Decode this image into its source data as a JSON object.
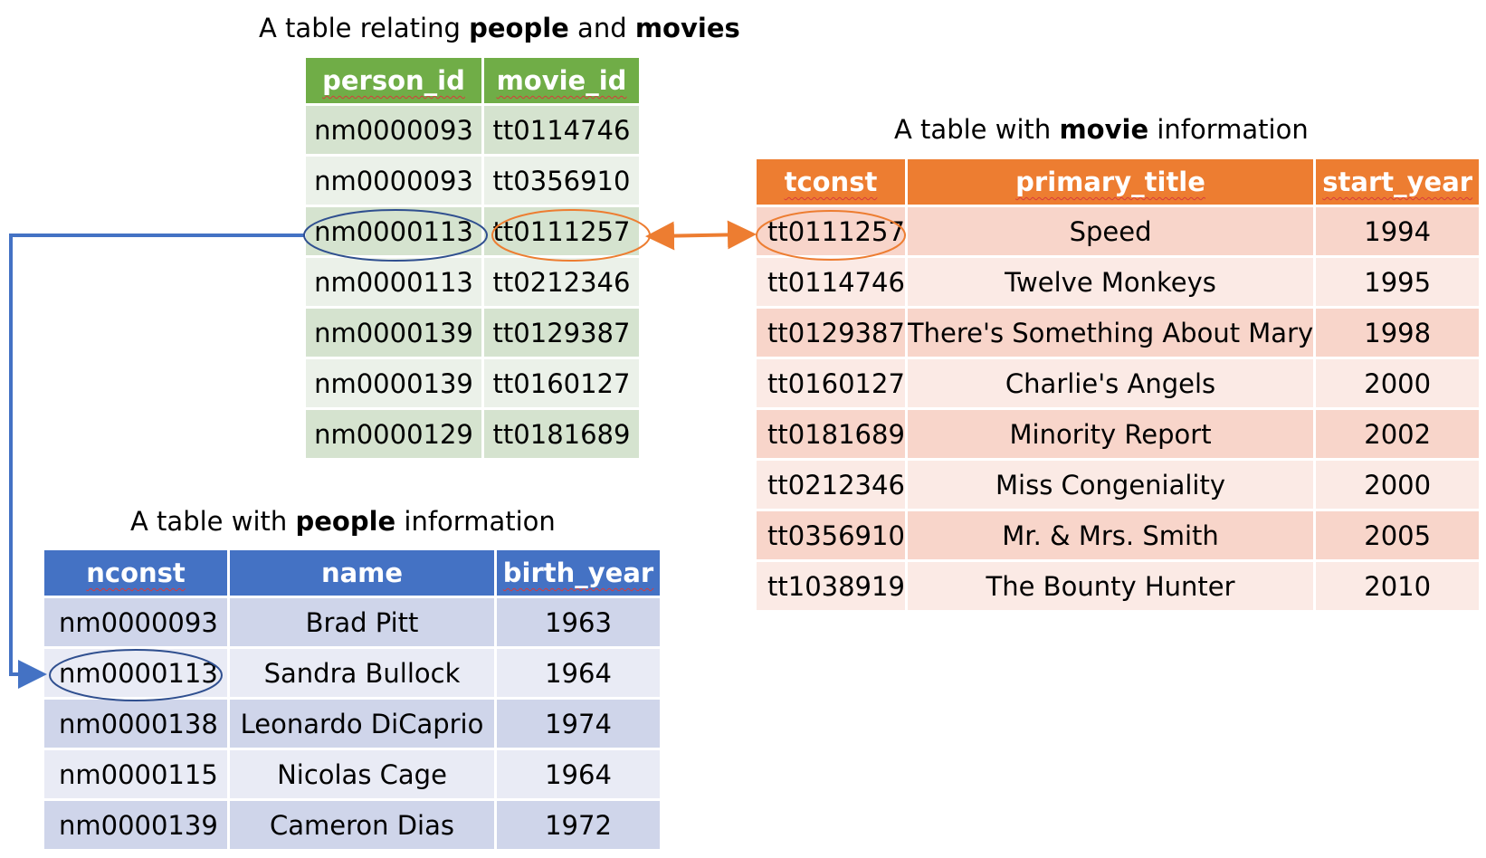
{
  "relation_table": {
    "caption_prefix": "A table relating ",
    "caption_bold1": "people",
    "caption_mid": " and ",
    "caption_bold2": "movies",
    "headers": [
      "person_id",
      "movie_id"
    ],
    "rows": [
      [
        "nm0000093",
        "tt0114746"
      ],
      [
        "nm0000093",
        "tt0356910"
      ],
      [
        "nm0000113",
        "tt0111257"
      ],
      [
        "nm0000113",
        "tt0212346"
      ],
      [
        "nm0000139",
        "tt0129387"
      ],
      [
        "nm0000139",
        "tt0160127"
      ],
      [
        "nm0000129",
        "tt0181689"
      ]
    ],
    "color": "#70ad47"
  },
  "movie_table": {
    "caption_prefix": "A table with ",
    "caption_bold": "movie",
    "caption_suffix": " information",
    "headers": [
      "tconst",
      "primary_title",
      "start_year"
    ],
    "rows": [
      [
        "tt0111257",
        "Speed",
        "1994"
      ],
      [
        "tt0114746",
        "Twelve Monkeys",
        "1995"
      ],
      [
        "tt0129387",
        "There's Something About Mary",
        "1998"
      ],
      [
        "tt0160127",
        "Charlie's Angels",
        "2000"
      ],
      [
        "tt0181689",
        "Minority Report",
        "2002"
      ],
      [
        "tt0212346",
        "Miss Congeniality",
        "2000"
      ],
      [
        "tt0356910",
        "Mr. & Mrs. Smith",
        "2005"
      ],
      [
        "tt1038919",
        "The Bounty Hunter",
        "2010"
      ]
    ],
    "color": "#ed7d31"
  },
  "people_table": {
    "caption_prefix": "A table with ",
    "caption_bold": "people",
    "caption_suffix": " information",
    "headers": [
      "nconst",
      "name",
      "birth_year"
    ],
    "rows": [
      [
        "nm0000093",
        "Brad Pitt",
        "1963"
      ],
      [
        "nm0000113",
        "Sandra Bullock",
        "1964"
      ],
      [
        "nm0000138",
        "Leonardo DiCaprio",
        "1974"
      ],
      [
        "nm0000115",
        "Nicolas Cage",
        "1964"
      ],
      [
        "nm0000139",
        "Cameron Dias",
        "1972"
      ]
    ],
    "color": "#4472c4"
  },
  "links": {
    "person_link_color": "#4472c4",
    "movie_link_color": "#ed7d31",
    "ellipse_blue": "#2f4f8f",
    "ellipse_orange": "#ed7d31"
  }
}
